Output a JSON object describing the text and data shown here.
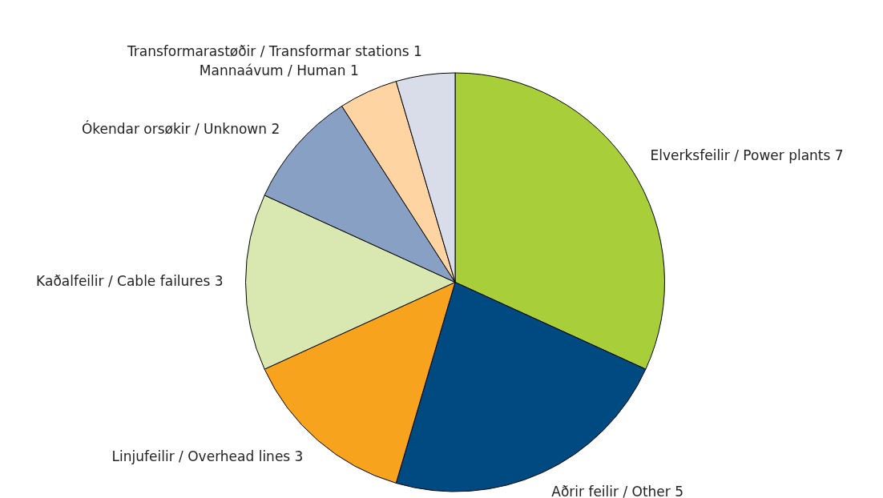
{
  "chart_data": {
    "type": "pie",
    "categories": [
      "Elverksfeilir / Power plants",
      "Aðrir feilir / Other",
      "Linjufeilir / Overhead lines",
      "Kaðalfeilir / Cable failures",
      "Ókendar orsøkir / Unknown",
      "Mannaávum / Human",
      "Transformarastøðir / Transformar stations"
    ],
    "values": [
      7,
      5,
      3,
      3,
      2,
      1,
      1
    ],
    "colors": [
      "#a8cf3a",
      "#004a82",
      "#f8a31e",
      "#d9e7b0",
      "#87a0c4",
      "#fed5a2",
      "#d8dde9"
    ],
    "data_labels": true,
    "legend": false
  }
}
